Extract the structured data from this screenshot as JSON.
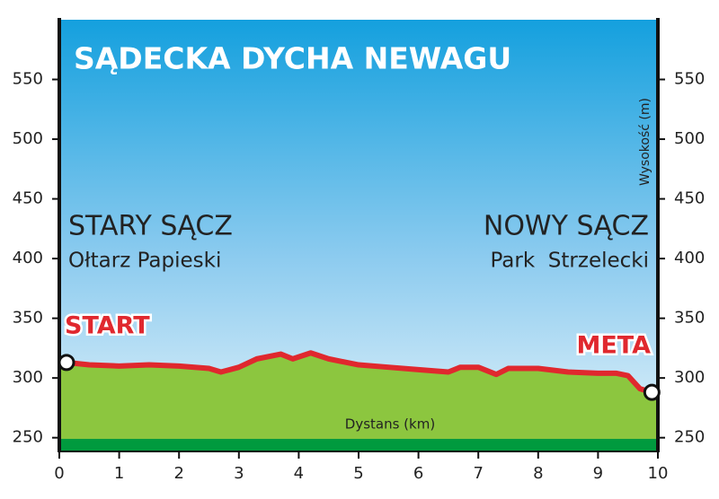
{
  "chart_data": {
    "type": "area",
    "title": "SĄDECKA DYCHA NEWAGU",
    "annotations": {
      "start_place": "STARY SĄCZ",
      "start_sub": "Ołtarz Papieski",
      "end_place": "NOWY SĄCZ",
      "end_sub": "Park  Strzelecki",
      "start": "START",
      "end": "META"
    },
    "x_label": "Dystans (km)",
    "y_label": "Wysokość (m)",
    "x": [
      0.12,
      0.5,
      1,
      1.5,
      2,
      2.5,
      2.7,
      3,
      3.3,
      3.7,
      3.9,
      4.2,
      4.5,
      5,
      5.5,
      6,
      6.5,
      6.7,
      7,
      7.3,
      7.5,
      8,
      8.5,
      9,
      9.3,
      9.5,
      9.7,
      9.9
    ],
    "values": [
      313,
      311,
      310,
      311,
      310,
      308,
      305,
      309,
      316,
      320,
      316,
      321,
      316,
      311,
      309,
      307,
      305,
      309,
      309,
      303,
      308,
      308,
      305,
      304,
      304,
      302,
      291,
      288
    ],
    "line_color": "#e0282e",
    "fill_color": "#8cc63f",
    "xlim": [
      0,
      10
    ],
    "xticks": [
      0,
      1,
      2,
      3,
      4,
      5,
      6,
      7,
      8,
      9,
      10
    ],
    "ylim": [
      240,
      600
    ],
    "yticks": [
      250,
      300,
      350,
      400,
      450,
      500,
      550
    ]
  }
}
